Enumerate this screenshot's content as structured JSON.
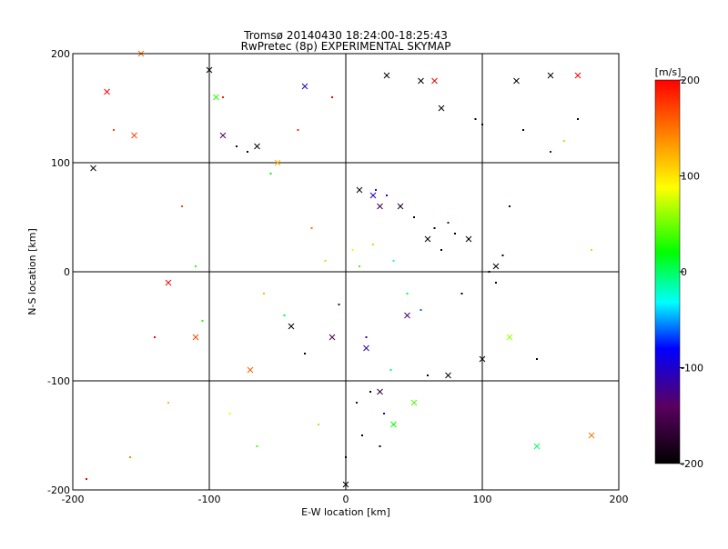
{
  "chart_data": {
    "type": "scatter",
    "title": "Tromsø 20140430 18:24:00-18:25:43",
    "subtitle": "RwPretec (8p) EXPERIMENTAL SKYMAP",
    "xlabel": "E-W location [km]",
    "ylabel": "N-S location [km]",
    "xlim": [
      -200,
      200
    ],
    "ylim": [
      -200,
      200
    ],
    "xticks": [
      "-200",
      "-100",
      "0",
      "100",
      "200"
    ],
    "yticks": [
      "-200",
      "-100",
      "0",
      "100",
      "200"
    ],
    "grid": true,
    "colorbar": {
      "label": "[m/s]",
      "range": [
        -200,
        200
      ],
      "ticks": [
        "200",
        "100",
        "0",
        "-100",
        "-200"
      ],
      "colors": [
        "#000000",
        "#5a0060",
        "#0000ff",
        "#00ffff",
        "#00ff00",
        "#ffff00",
        "#ff8000",
        "#ff0000"
      ]
    },
    "series": [
      {
        "marker": "dot",
        "points": [
          [
            -158,
            -170,
            140
          ],
          [
            -120,
            60,
            170
          ],
          [
            -105,
            -45,
            30
          ],
          [
            -80,
            115,
            -180
          ],
          [
            -72,
            110,
            -190
          ],
          [
            -60,
            -20,
            120
          ],
          [
            -45,
            -40,
            10
          ],
          [
            -30,
            -75,
            -200
          ],
          [
            -25,
            40,
            150
          ],
          [
            -15,
            10,
            60
          ],
          [
            -5,
            -30,
            -150
          ],
          [
            5,
            20,
            80
          ],
          [
            10,
            5,
            40
          ],
          [
            15,
            -60,
            -120
          ],
          [
            18,
            -110,
            -200
          ],
          [
            20,
            25,
            110
          ],
          [
            22,
            75,
            -120
          ],
          [
            30,
            70,
            -100
          ],
          [
            35,
            10,
            -30
          ],
          [
            40,
            60,
            -180
          ],
          [
            45,
            -20,
            5
          ],
          [
            50,
            50,
            -195
          ],
          [
            55,
            -35,
            -60
          ],
          [
            60,
            -95,
            -200
          ],
          [
            65,
            40,
            -200
          ],
          [
            70,
            20,
            -200
          ],
          [
            75,
            45,
            -150
          ],
          [
            80,
            35,
            -200
          ],
          [
            85,
            -20,
            -200
          ],
          [
            90,
            30,
            -180
          ],
          [
            95,
            140,
            -200
          ],
          [
            100,
            135,
            -200
          ],
          [
            105,
            0,
            -200
          ],
          [
            110,
            -10,
            -190
          ],
          [
            115,
            15,
            -200
          ],
          [
            120,
            60,
            -180
          ],
          [
            130,
            130,
            -200
          ],
          [
            140,
            -80,
            -200
          ],
          [
            150,
            110,
            -150
          ],
          [
            160,
            120,
            60
          ],
          [
            170,
            140,
            -200
          ],
          [
            180,
            20,
            110
          ],
          [
            -190,
            -190,
            200
          ],
          [
            -170,
            130,
            170
          ],
          [
            -140,
            -60,
            200
          ],
          [
            -130,
            -120,
            120
          ],
          [
            -110,
            5,
            30
          ],
          [
            -90,
            160,
            190
          ],
          [
            -85,
            -130,
            80
          ],
          [
            -65,
            -160,
            40
          ],
          [
            -55,
            90,
            20
          ],
          [
            -35,
            130,
            180
          ],
          [
            -20,
            -140,
            60
          ],
          [
            -10,
            160,
            200
          ],
          [
            0,
            -170,
            -200
          ],
          [
            8,
            -120,
            -170
          ],
          [
            12,
            -150,
            -200
          ],
          [
            25,
            -160,
            -200
          ],
          [
            28,
            -130,
            -100
          ],
          [
            33,
            -90,
            0
          ]
        ]
      },
      {
        "marker": "cross",
        "points": [
          [
            -175,
            165,
            200
          ],
          [
            -155,
            125,
            170
          ],
          [
            -100,
            185,
            -200
          ],
          [
            -95,
            160,
            30
          ],
          [
            -90,
            125,
            -140
          ],
          [
            -65,
            115,
            -195
          ],
          [
            -50,
            100,
            120
          ],
          [
            -40,
            -50,
            -200
          ],
          [
            -30,
            170,
            -100
          ],
          [
            0,
            -195,
            -200
          ],
          [
            10,
            75,
            -190
          ],
          [
            20,
            70,
            -100
          ],
          [
            25,
            60,
            -160
          ],
          [
            30,
            180,
            -200
          ],
          [
            40,
            60,
            -180
          ],
          [
            50,
            -120,
            40
          ],
          [
            55,
            175,
            -200
          ],
          [
            60,
            30,
            -200
          ],
          [
            65,
            175,
            200
          ],
          [
            70,
            150,
            -200
          ],
          [
            75,
            -95,
            -195
          ],
          [
            90,
            30,
            -200
          ],
          [
            100,
            -80,
            -200
          ],
          [
            110,
            5,
            -200
          ],
          [
            120,
            -60,
            60
          ],
          [
            125,
            175,
            -200
          ],
          [
            140,
            -160,
            0
          ],
          [
            150,
            180,
            -200
          ],
          [
            170,
            180,
            200
          ],
          [
            180,
            -150,
            150
          ],
          [
            -130,
            -10,
            200
          ],
          [
            -110,
            -60,
            170
          ],
          [
            -70,
            -90,
            160
          ],
          [
            -10,
            -60,
            -150
          ],
          [
            15,
            -70,
            -110
          ],
          [
            25,
            -110,
            -170
          ],
          [
            35,
            -140,
            20
          ],
          [
            45,
            -40,
            -130
          ],
          [
            -185,
            95,
            -190
          ],
          [
            -150,
            200,
            150
          ]
        ]
      }
    ]
  }
}
